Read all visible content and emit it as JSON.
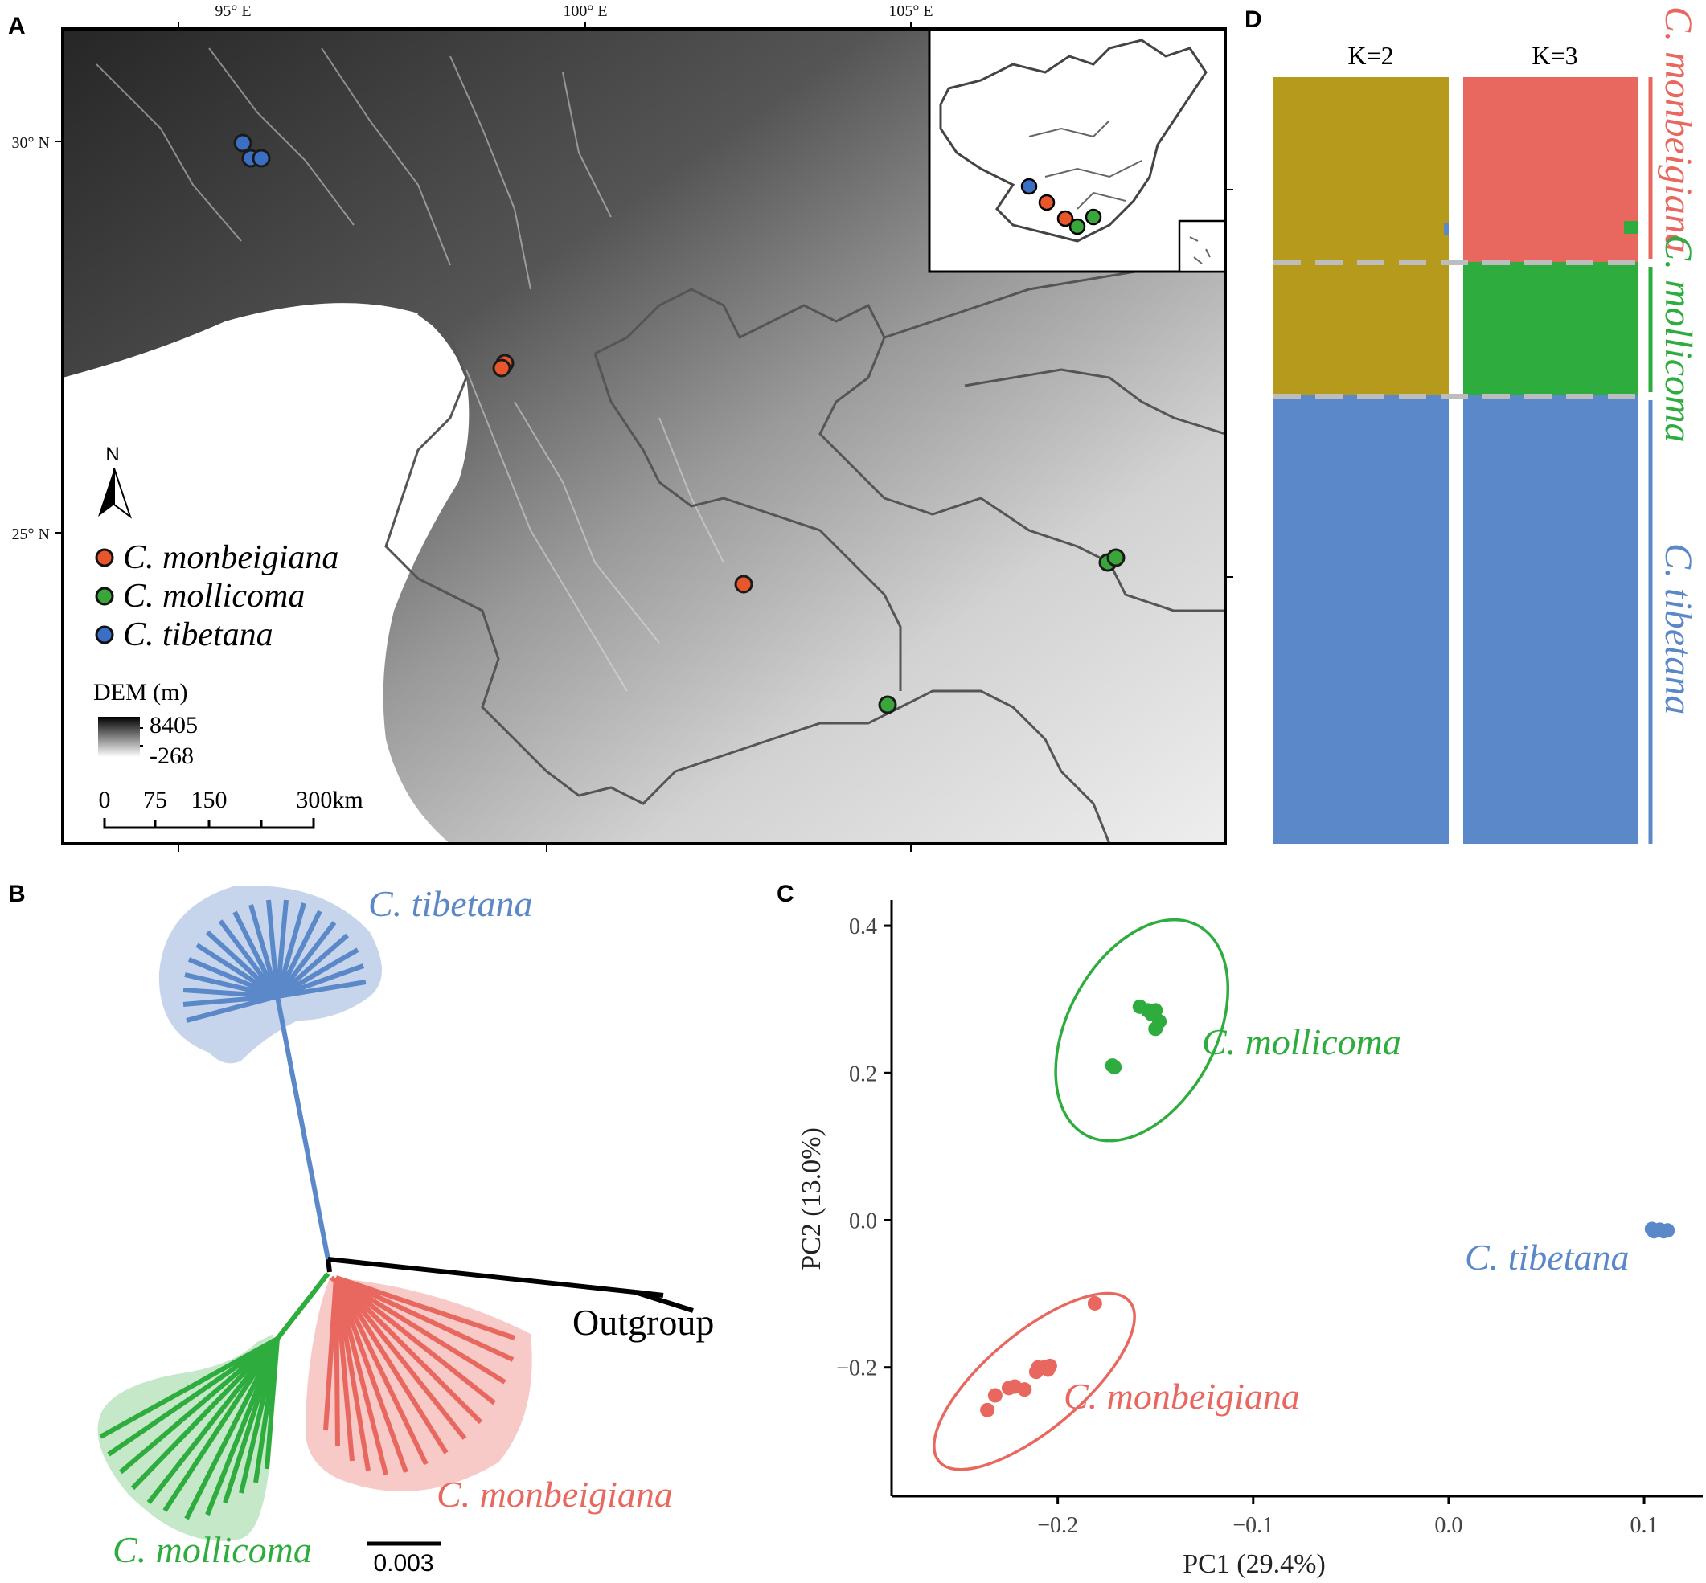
{
  "panels": {
    "a": {
      "letter": "A",
      "lon_ticks": [
        "95° E",
        "100° E",
        "105° E"
      ],
      "lat_ticks": [
        "30° N",
        "25° N"
      ],
      "north_label": "N",
      "legend": [
        {
          "label": "C. monbeigiana",
          "color": "#e8572b"
        },
        {
          "label": "C. mollicoma",
          "color": "#3aa53a"
        },
        {
          "label": "C. tibetana",
          "color": "#3b6fc4"
        }
      ],
      "dem": {
        "title": "DEM (m)",
        "max": "8405",
        "min": "-268"
      },
      "scalebar": [
        "0",
        "75",
        "150",
        "300km"
      ]
    },
    "b": {
      "letter": "B",
      "clades": {
        "tibetana": "C. tibetana",
        "mollicoma": "C. mollicoma",
        "monbeigiana": "C. monbeigiana",
        "outgroup": "Outgroup"
      },
      "scale_label": "0.003"
    },
    "c": {
      "letter": "C",
      "labels": {
        "mollicoma": "C. mollicoma",
        "tibetana": "C. tibetana",
        "monbeigiana": "C. monbeigiana"
      }
    },
    "d": {
      "letter": "D",
      "k_labels": [
        "K=2",
        "K=3"
      ],
      "side_labels": [
        "C. monbeigiana",
        "C. mollicoma",
        "C. tibetana"
      ]
    }
  },
  "colors": {
    "tibetana": "#5b88c8",
    "mollicoma": "#2eac3e",
    "monbeigiana": "#e8675e",
    "k2_olive": "#b59a1c",
    "outgroup": "#000000"
  },
  "chart_data": {
    "type": "scatter",
    "xlabel": "PC1 (29.4%)",
    "ylabel": "PC2 (13.0%)",
    "xlim": [
      -0.285,
      0.13
    ],
    "ylim": [
      -0.375,
      0.435
    ],
    "x_ticks": [
      -0.2,
      -0.1,
      0.0,
      0.1
    ],
    "x_tick_labels": [
      "−0.2",
      "−0.1",
      "0.0",
      "0.1"
    ],
    "y_ticks": [
      -0.2,
      0.0,
      0.2,
      0.4
    ],
    "y_tick_labels": [
      "−0.2",
      "0.0",
      "0.2",
      "0.4"
    ],
    "series": [
      {
        "name": "C. mollicoma",
        "color": "#2eac3e",
        "points": [
          [
            -0.158,
            0.29
          ],
          [
            -0.154,
            0.285
          ],
          [
            -0.152,
            0.28
          ],
          [
            -0.15,
            0.285
          ],
          [
            -0.148,
            0.27
          ],
          [
            -0.15,
            0.26
          ],
          [
            -0.172,
            0.21
          ],
          [
            -0.171,
            0.208
          ]
        ],
        "ellipse": {
          "cx": -0.157,
          "cy": 0.258,
          "rx": 0.064,
          "ry": 0.04,
          "rotate": -62
        }
      },
      {
        "name": "C. tibetana",
        "color": "#5b88c8",
        "points": [
          [
            0.104,
            -0.012
          ],
          [
            0.106,
            -0.014
          ],
          [
            0.108,
            -0.013
          ],
          [
            0.11,
            -0.015
          ],
          [
            0.112,
            -0.014
          ],
          [
            0.105,
            -0.015
          ]
        ]
      },
      {
        "name": "C. monbeigiana",
        "color": "#e8675e",
        "points": [
          [
            -0.181,
            -0.113
          ],
          [
            -0.204,
            -0.198
          ],
          [
            -0.207,
            -0.2
          ],
          [
            -0.21,
            -0.2
          ],
          [
            -0.205,
            -0.203
          ],
          [
            -0.225,
            -0.228
          ],
          [
            -0.217,
            -0.23
          ],
          [
            -0.232,
            -0.238
          ],
          [
            -0.236,
            -0.258
          ],
          [
            -0.222,
            -0.226
          ],
          [
            -0.211,
            -0.206
          ]
        ],
        "ellipse": {
          "cx": -0.212,
          "cy": -0.219,
          "rx": 0.067,
          "ry": 0.026,
          "rotate": -40
        }
      }
    ]
  }
}
